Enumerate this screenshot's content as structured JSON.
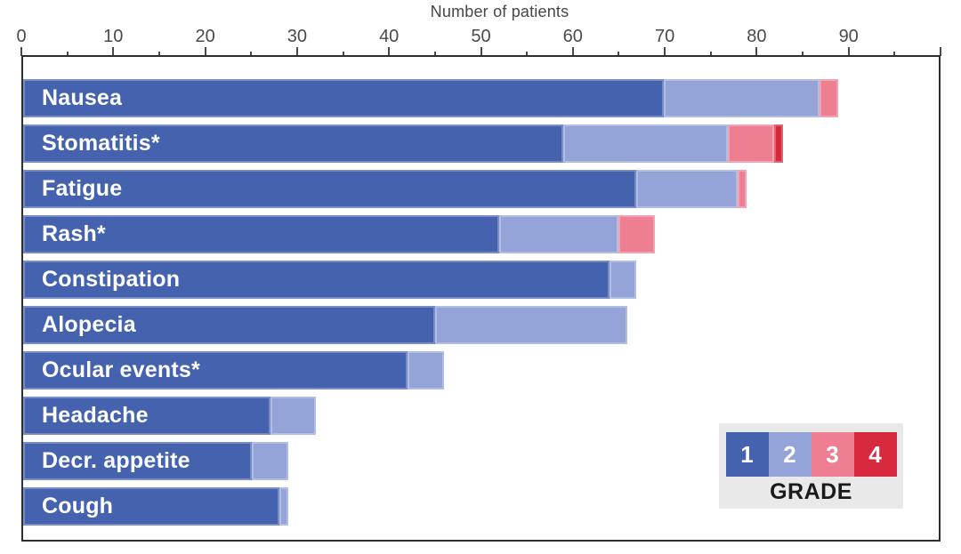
{
  "chart_data": {
    "type": "bar",
    "orientation": "horizontal",
    "stacked": true,
    "title": "Number of patients",
    "xlabel": "Number of patients",
    "ylabel": "",
    "xlim": [
      0,
      100
    ],
    "grid": false,
    "x_major_ticks": [
      0,
      10,
      20,
      30,
      40,
      50,
      60,
      70,
      80,
      90,
      100
    ],
    "x_tick_labels": [
      "0",
      "10",
      "20",
      "30",
      "40",
      "50",
      "60",
      "70",
      "80",
      "90",
      ""
    ],
    "x_minor_ticks": [
      5,
      15,
      25,
      35,
      45,
      55,
      65,
      75,
      85,
      95
    ],
    "categories": [
      "Nausea",
      "Stomatitis*",
      "Fatigue",
      "Rash*",
      "Constipation",
      "Alopecia",
      "Ocular events*",
      "Headache",
      "Decr. appetite",
      "Cough"
    ],
    "series": [
      {
        "name": "Grade 1",
        "color": "#4562af",
        "values": [
          70,
          59,
          67,
          52,
          64,
          45,
          42,
          27,
          25,
          28
        ]
      },
      {
        "name": "Grade 2",
        "color": "#95a4d8",
        "values": [
          17,
          18,
          11,
          13,
          3,
          21,
          4,
          5,
          4,
          1
        ]
      },
      {
        "name": "Grade 3",
        "color": "#ee7f92",
        "values": [
          2,
          5,
          1,
          4,
          0,
          0,
          0,
          0,
          0,
          0
        ]
      },
      {
        "name": "Grade 4",
        "color": "#d6293e",
        "values": [
          0,
          1,
          0,
          0,
          0,
          0,
          0,
          0,
          0,
          0
        ]
      }
    ],
    "totals": [
      89,
      83,
      79,
      69,
      67,
      66,
      46,
      32,
      29,
      29
    ],
    "legend_position": "lower right"
  },
  "legend": {
    "title": "GRADE",
    "items": [
      {
        "label": "1",
        "color": "#4562af"
      },
      {
        "label": "2",
        "color": "#95a4d8"
      },
      {
        "label": "3",
        "color": "#ee7f92"
      },
      {
        "label": "4",
        "color": "#d6293e"
      }
    ]
  }
}
